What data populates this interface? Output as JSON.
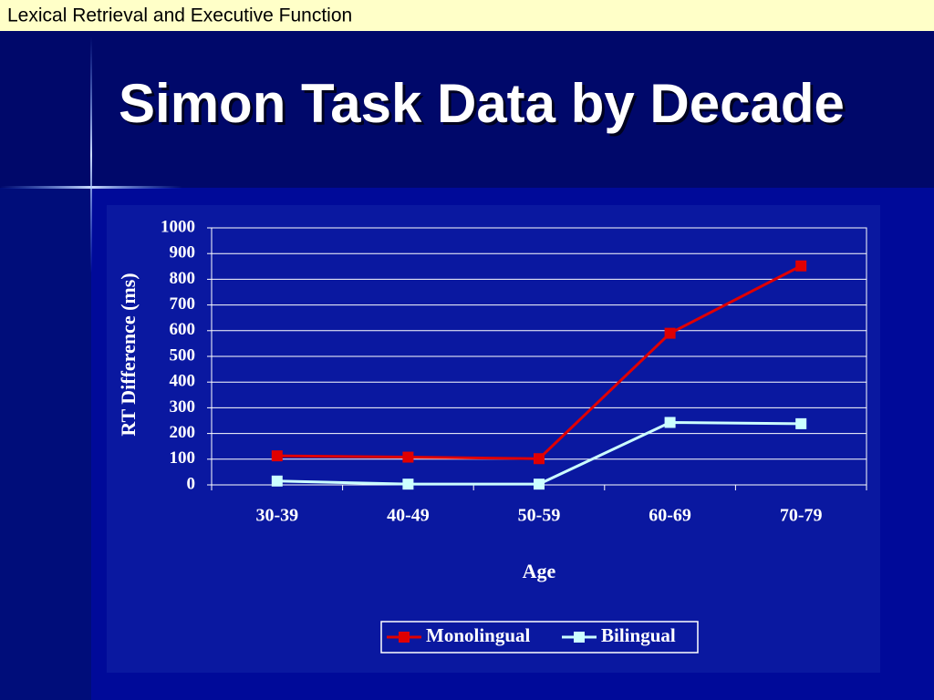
{
  "header": "Lexical Retrieval and Executive Function",
  "title": "Simon Task Data by Decade",
  "chart_data": {
    "type": "line",
    "ylabel": "RT Difference (ms)",
    "xlabel": "Age",
    "categories": [
      "30-39",
      "40-49",
      "50-59",
      "60-69",
      "70-79"
    ],
    "series": [
      {
        "name": "Monolingual",
        "color": "#e00000",
        "values": [
          113,
          108,
          102,
          590,
          852
        ]
      },
      {
        "name": "Bilingual",
        "color": "#ccffff",
        "values": [
          15,
          3,
          3,
          243,
          238
        ]
      }
    ],
    "ylim": [
      0,
      1000
    ],
    "yticks": [
      0,
      100,
      200,
      300,
      400,
      500,
      600,
      700,
      800,
      900,
      1000
    ],
    "grid": true,
    "legend": "bottom"
  }
}
